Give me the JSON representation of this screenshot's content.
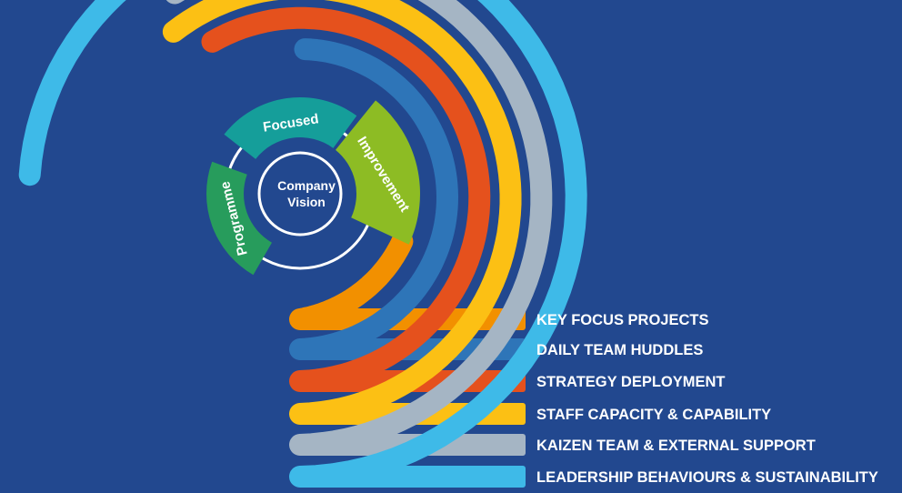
{
  "center": {
    "line1": "Company",
    "line2": "Vision"
  },
  "segments": [
    {
      "text": "Focused",
      "color": "#159e9a"
    },
    {
      "text": "Improvement",
      "color": "#8dbc24"
    },
    {
      "text": "Programme",
      "color": "#279c5c"
    }
  ],
  "bands": [
    {
      "label": "KEY FOCUS PROJECTS",
      "color": "#f29000"
    },
    {
      "label": "DAILY TEAM HUDDLES",
      "color": "#2e75b8"
    },
    {
      "label": "STRATEGY DEPLOYMENT",
      "color": "#e5511d"
    },
    {
      "label": "STAFF CAPACITY & CAPABILITY",
      "color": "#fcc014"
    },
    {
      "label": "KAIZEN TEAM & EXTERNAL SUPPORT",
      "color": "#a5b5c4"
    },
    {
      "label": "LEADERSHIP BEHAVIOURS & SUSTAINABILITY",
      "color": "#3ebae8"
    }
  ],
  "colors": {
    "background": "#22488f",
    "center_ring": "#ffffff"
  }
}
